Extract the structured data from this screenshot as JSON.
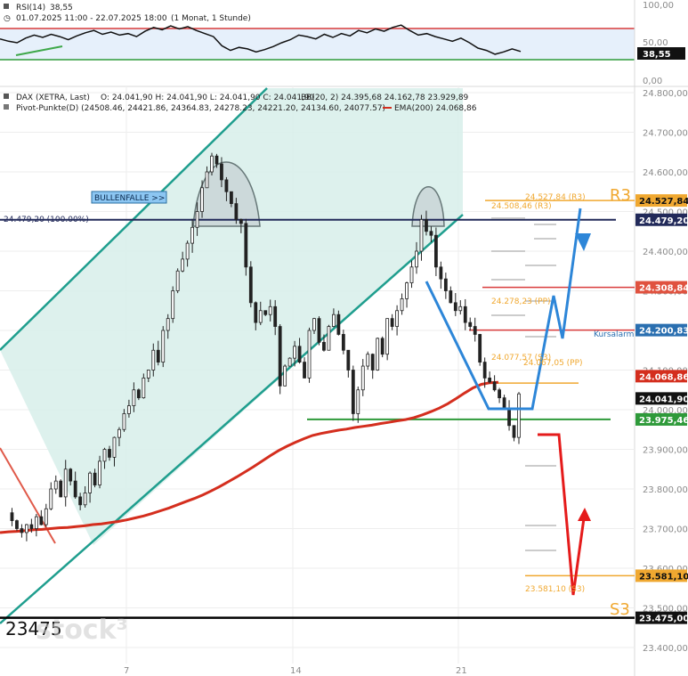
{
  "rsi_panel": {
    "indicator": "RSI(14)",
    "value": "38,55",
    "range": "01.07.2025 11:00 - 22.07.2025 18:00",
    "interval": "(1 Monat, 1 Stunde)",
    "axis_ticks": [
      "100,00",
      "50,00",
      "0,00"
    ],
    "current_label": "38,55",
    "upper_band": 70,
    "lower_band": 30
  },
  "main_header": {
    "instrument": "DAX (XETRA, Last)",
    "ohlc": "O: 24.041,90  H: 24.041,90  L: 24.041,90  C: 24.041,90",
    "overlay_values": "BB(20, 2)  24.395,68  24.162,78  23.929,89",
    "pivots": "Pivot-Punkte(D) (24508.46, 24421.86, 24364.83, 24278.23, 24221.20, 24134.60, 24077.57)",
    "ema": "EMA(200)  24.068,86"
  },
  "chart_data": {
    "type": "candlestick",
    "instrument": "DAX (XETRA, Last)",
    "ylim": [
      23400,
      24800
    ],
    "y_ticks": [
      "24.800,00",
      "24.700,00",
      "24.600,00",
      "24.500,00",
      "24.400,00",
      "24.300,00",
      "24.200,00",
      "24.100,00",
      "24.000,00",
      "23.900,00",
      "23.800,00",
      "23.700,00",
      "23.600,00",
      "23.500,00",
      "23.400,00"
    ],
    "x_ticks": [
      "7",
      "14",
      "21"
    ],
    "levels": {
      "r3": 24527.84,
      "top": 24479.2,
      "resistance": 24308.84,
      "kursalarm": 24200.83,
      "ema200": 24068.86,
      "last": 24041.9,
      "support": 23975.46,
      "s3": 23581.1,
      "low": 23475.0
    },
    "axis_labels": {
      "r3": "24.527,84",
      "top": "24.479,20",
      "resistance": "24.308,84",
      "kursalarm": "24.200,83",
      "ema200": "24.068,86",
      "last": "24.041,90",
      "support": "23.975,46",
      "s3": "23.581,10",
      "low": "23.475,00"
    },
    "annotations": {
      "bullenfalle": "BULLENFALLE >>",
      "top_label": "24.479,20 (100.00%)",
      "r3_pivot": "24.527,84 (R3)",
      "r3_pivot2": "24.508,46 (R3)",
      "pp_pivot": "24.278,23 (PP)",
      "s3_pivot": "24.077,57 (S3)",
      "pp_pivot2": "24.067,05 (PP)",
      "s3_low_pivot": "23.581,10 (S3)",
      "kursalarm": "Kursalarm",
      "r3_big": "R3",
      "s3_big": "S3",
      "low_big": "23475"
    },
    "close_path": [
      23740,
      23720,
      23700,
      23690,
      23710,
      23700,
      23730,
      23710,
      23750,
      23800,
      23820,
      23780,
      23850,
      23820,
      23780,
      23760,
      23790,
      23840,
      23810,
      23870,
      23900,
      23880,
      23930,
      23950,
      23990,
      24010,
      24050,
      24030,
      24080,
      24100,
      24150,
      24120,
      24200,
      24230,
      24300,
      24350,
      24380,
      24420,
      24460,
      24500,
      24560,
      24600,
      24640,
      24620,
      24580,
      24550,
      24520,
      24480,
      24470,
      24360,
      24270,
      24220,
      24250,
      24240,
      24260,
      24210,
      24060,
      24110,
      24130,
      24160,
      24120,
      24080,
      24200,
      24230,
      24170,
      24150,
      24210,
      24240,
      24190,
      24150,
      24100,
      23990,
      24050,
      24110,
      24140,
      24100,
      24180,
      24140,
      24230,
      24210,
      24250,
      24280,
      24320,
      24360,
      24400,
      24480,
      24450,
      24440,
      24360,
      24330,
      24300,
      24270,
      24250,
      24260,
      24220,
      24210,
      24190,
      24120,
      24080,
      24070,
      24050,
      24030,
      24000,
      23960,
      23930,
      24040
    ],
    "ema200_path": [
      23690,
      23692,
      23693,
      23695,
      23697,
      23698,
      23700,
      23702,
      23703,
      23705,
      23707,
      23710,
      23712,
      23715,
      23718,
      23722,
      23727,
      23732,
      23738,
      23745,
      23752,
      23760,
      23768,
      23776,
      23785,
      23795,
      23806,
      23818,
      23830,
      23843,
      23856,
      23870,
      23884,
      23897,
      23908,
      23918,
      23927,
      23935,
      23940,
      23944,
      23948,
      23951,
      23955,
      23958,
      23961,
      23965,
      23968,
      23972,
      23975,
      23980,
      23987,
      23995,
      24004,
      24015,
      24028,
      24042,
      24055,
      24064,
      24068,
      24069
    ],
    "rsi_path": [
      55,
      52,
      50,
      56,
      60,
      57,
      61,
      58,
      54,
      59,
      63,
      66,
      61,
      64,
      60,
      62,
      58,
      65,
      70,
      67,
      72,
      68,
      71,
      66,
      62,
      58,
      46,
      40,
      44,
      42,
      38,
      41,
      45,
      50,
      54,
      60,
      58,
      55,
      61,
      57,
      62,
      59,
      66,
      63,
      68,
      65,
      70,
      73,
      66,
      60,
      62,
      58,
      55,
      52,
      56,
      50,
      43,
      40,
      35,
      38,
      42,
      38.55
    ]
  }
}
